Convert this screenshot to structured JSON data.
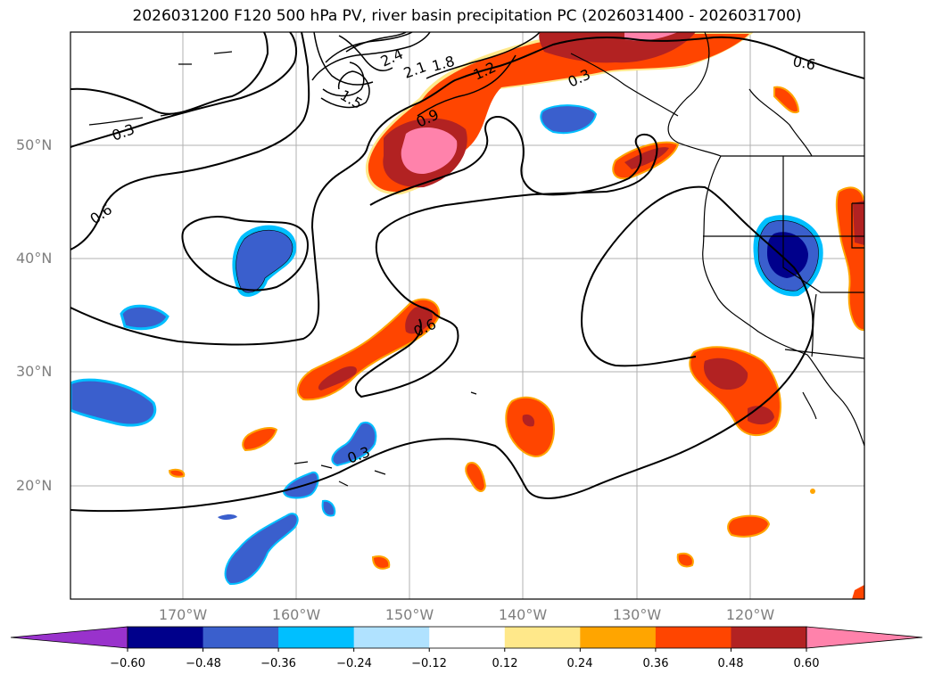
{
  "title": "2026031200 F120 500 hPa PV, river basin precipitation PC (2026031400 - 2026031700)",
  "lat_labels": [
    "50°N",
    "40°N",
    "30°N",
    "20°N"
  ],
  "lon_labels": [
    "170°W",
    "160°W",
    "150°W",
    "140°W",
    "130°W",
    "120°W"
  ],
  "contour_labels": [
    "2.4",
    "2.1",
    "1.8",
    "1.5",
    "1.2",
    "0.9",
    "0.6",
    "0.3",
    "0.6",
    "0.6",
    "0.3",
    "0.3"
  ],
  "colorbar": {
    "ticks": [
      "−0.60",
      "−0.48",
      "−0.36",
      "−0.24",
      "−0.12",
      "0.12",
      "0.24",
      "0.36",
      "0.48",
      "0.60"
    ],
    "colors": [
      "#9932cc",
      "#00008b",
      "#3a5fcd",
      "#00bfff",
      "#b0e2ff",
      "#ffffff",
      "#ffe88a",
      "#ffa500",
      "#ff4500",
      "#b22222",
      "#ff82ab"
    ]
  },
  "colors": {
    "neg_dark": "#00008b",
    "neg": "#3a5fcd",
    "neg_light": "#00bfff",
    "pos_yellow": "#ffe88a",
    "pos_orange": "#ffa500",
    "pos_red": "#ff4500",
    "pos_dark": "#b22222",
    "pos_pink": "#ff82ab"
  }
}
